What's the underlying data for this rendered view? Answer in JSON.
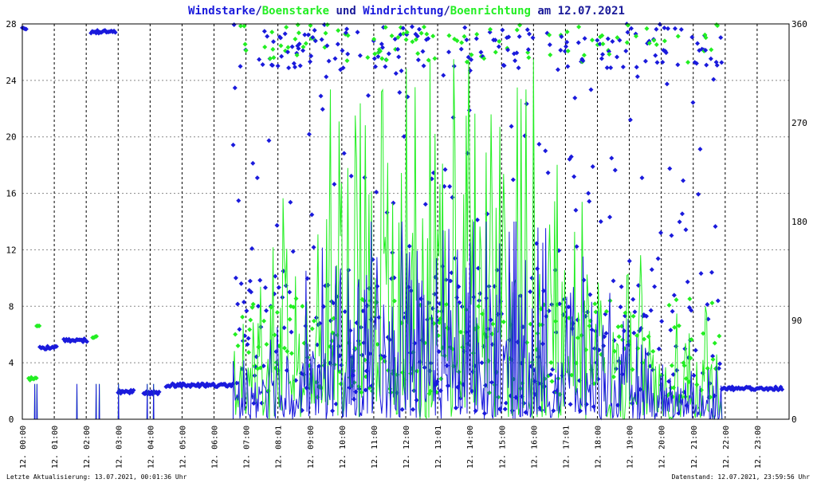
{
  "chart_data": {
    "type": "scatter",
    "title_parts": [
      {
        "text": "Windstarke",
        "role": "series"
      },
      {
        "text": "/",
        "role": "sep"
      },
      {
        "text": "Boenstarke",
        "role": "series2"
      },
      {
        "text": " und ",
        "role": "sep"
      },
      {
        "text": "Windrichtung",
        "role": "series"
      },
      {
        "text": "/",
        "role": "sep"
      },
      {
        "text": "Boenrichtung",
        "role": "series2"
      },
      {
        "text": " am 12.07.2021",
        "role": "sep"
      }
    ],
    "colors": {
      "wind": "#1a1adc",
      "gust": "#22ee22",
      "text": "#1a1a99",
      "axis": "#000000",
      "grid": "#888888"
    },
    "y_left": {
      "min": 0,
      "max": 28,
      "ticks": [
        "0",
        "4",
        "8",
        "12",
        "16",
        "20",
        "24",
        "28"
      ]
    },
    "y_right": {
      "min": 0,
      "max": 360,
      "ticks": [
        "0",
        "90",
        "180",
        "270",
        "360"
      ]
    },
    "x": {
      "min": 0,
      "max": 24,
      "unit": "hour"
    },
    "x_tick_labels": [
      "12. 00:00",
      "12. 01:00",
      "12. 02:00",
      "12. 03:00",
      "12. 04:00",
      "12. 05:00",
      "12. 06:00",
      "12. 07:00",
      "12. 08:01",
      "12. 09:00",
      "12. 10:00",
      "12. 11:00",
      "12. 12:00",
      "12. 13:01",
      "12. 14:00",
      "12. 15:00",
      "12. 16:00",
      "12. 17:01",
      "12. 18:00",
      "12. 19:00",
      "12. 20:00",
      "12. 21:00",
      "12. 22:00",
      "12. 23:00"
    ],
    "footer_left": "Letzte Aktualisierung: 13.07.2021, 00:01:36 Uhr",
    "footer_right": "Datenstand: 12.07.2021, 23:59:56 Uhr",
    "direction_series": [
      {
        "name": "Windrichtung",
        "color_key": "wind",
        "segments": [
          {
            "from": 0.0,
            "to": 0.15,
            "dir": 355
          },
          {
            "from": 0.55,
            "to": 1.1,
            "dir": 65
          },
          {
            "from": 1.3,
            "to": 2.05,
            "dir": 72
          },
          {
            "from": 2.15,
            "to": 2.95,
            "dir": 353
          },
          {
            "from": 3.0,
            "to": 3.5,
            "dir": 25
          },
          {
            "from": 3.8,
            "to": 4.3,
            "dir": 24
          },
          {
            "from": 4.5,
            "to": 6.6,
            "dir": 31
          },
          {
            "from": 21.9,
            "to": 23.8,
            "dir": 28
          }
        ]
      },
      {
        "name": "Boenrichtung",
        "color_key": "gust",
        "segments": [
          {
            "from": 0.2,
            "to": 0.45,
            "dir": 37
          },
          {
            "from": 0.45,
            "to": 0.55,
            "dir": 85
          },
          {
            "from": 2.2,
            "to": 2.35,
            "dir": 75
          }
        ]
      }
    ],
    "activity": {
      "from": 6.6,
      "to": 21.9
    }
  }
}
